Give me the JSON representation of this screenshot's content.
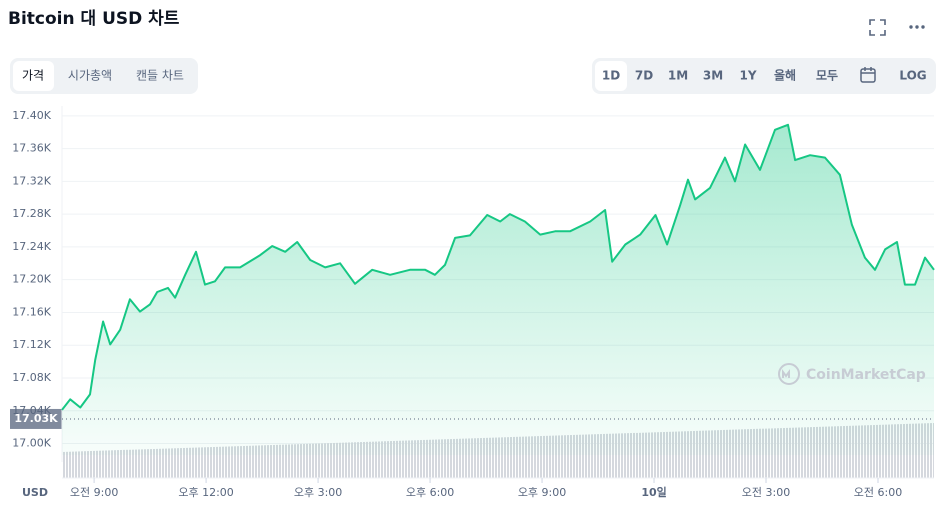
{
  "header": {
    "title": "Bitcoin 대 USD 차트"
  },
  "tabs": [
    "가격",
    "시가총액",
    "캔들 차트"
  ],
  "ranges": [
    "1D",
    "7D",
    "1M",
    "3M",
    "1Y",
    "올해",
    "모두"
  ],
  "log": "LOG",
  "watermark": "CoinMarketCap",
  "chart_data": {
    "type": "line",
    "currency": "USD",
    "x": [
      8.14,
      8.36,
      8.63,
      8.89,
      9.03,
      9.24,
      9.43,
      9.7,
      9.96,
      10.23,
      10.5,
      10.69,
      10.98,
      11.17,
      11.44,
      11.73,
      11.97,
      12.24,
      12.51,
      12.91,
      13.45,
      13.77,
      14.12,
      14.44,
      14.79,
      15.19,
      15.59,
      15.99,
      16.45,
      16.93,
      17.46,
      17.87,
      18.13,
      18.4,
      18.67,
      19.07,
      19.53,
      19.88,
      20.14,
      20.54,
      20.95,
      21.35,
      21.75,
      22.29,
      22.69,
      22.88,
      23.23,
      23.63,
      24.04,
      24.35,
      24.7,
      24.91,
      25.1,
      25.5,
      25.9,
      26.17,
      26.44,
      26.84,
      27.24,
      27.59,
      27.78,
      28.18,
      28.58,
      28.98,
      29.3,
      29.65,
      29.92,
      30.19,
      30.51,
      30.72,
      30.99,
      31.26,
      31.5
    ],
    "series": [
      {
        "color": "#16c784",
        "values": [
          17041,
          17054,
          17044,
          17060,
          17102,
          17149,
          17121,
          17139,
          17176,
          17161,
          17170,
          17185,
          17190,
          17178,
          17206,
          17234,
          17194,
          17198,
          17215,
          17215,
          17230,
          17241,
          17234,
          17246,
          17224,
          17215,
          17220,
          17195,
          17212,
          17206,
          17212,
          17212,
          17206,
          17218,
          17251,
          17254,
          17279,
          17271,
          17280,
          17271,
          17255,
          17259,
          17259,
          17271,
          17285,
          17222,
          17243,
          17255,
          17279,
          17243,
          17291,
          17322,
          17298,
          17312,
          17349,
          17320,
          17365,
          17334,
          17383,
          17389,
          17346,
          17352,
          17349,
          17328,
          17267,
          17227,
          17212,
          17237,
          17246,
          17194,
          17194,
          17227,
          17212
        ]
      }
    ],
    "xlim": [
      8.14,
      31.5
    ],
    "xticks": [
      {
        "value": 9,
        "label": "오전 9:00"
      },
      {
        "value": 12,
        "label": "오후 12:00"
      },
      {
        "value": 15,
        "label": "오후 3:00"
      },
      {
        "value": 18,
        "label": "오후 6:00"
      },
      {
        "value": 21,
        "label": "오후 9:00"
      },
      {
        "value": 24,
        "label": "10일"
      },
      {
        "value": 27,
        "label": "오전 3:00"
      },
      {
        "value": 30,
        "label": "오전 6:00"
      }
    ],
    "ylim": [
      16986,
      17412
    ],
    "yticks": [
      {
        "value": 17000,
        "label": "17.00K"
      },
      {
        "value": 17040,
        "label": "17.04K"
      },
      {
        "value": 17080,
        "label": "17.08K"
      },
      {
        "value": 17120,
        "label": "17.12K"
      },
      {
        "value": 17160,
        "label": "17.16K"
      },
      {
        "value": 17200,
        "label": "17.20K"
      },
      {
        "value": 17240,
        "label": "17.24K"
      },
      {
        "value": 17280,
        "label": "17.28K"
      },
      {
        "value": 17320,
        "label": "17.32K"
      },
      {
        "value": 17360,
        "label": "17.36K"
      },
      {
        "value": 17400,
        "label": "17.40K"
      }
    ],
    "reference": {
      "value": 17030,
      "label": "17.03K"
    },
    "grid": true
  }
}
